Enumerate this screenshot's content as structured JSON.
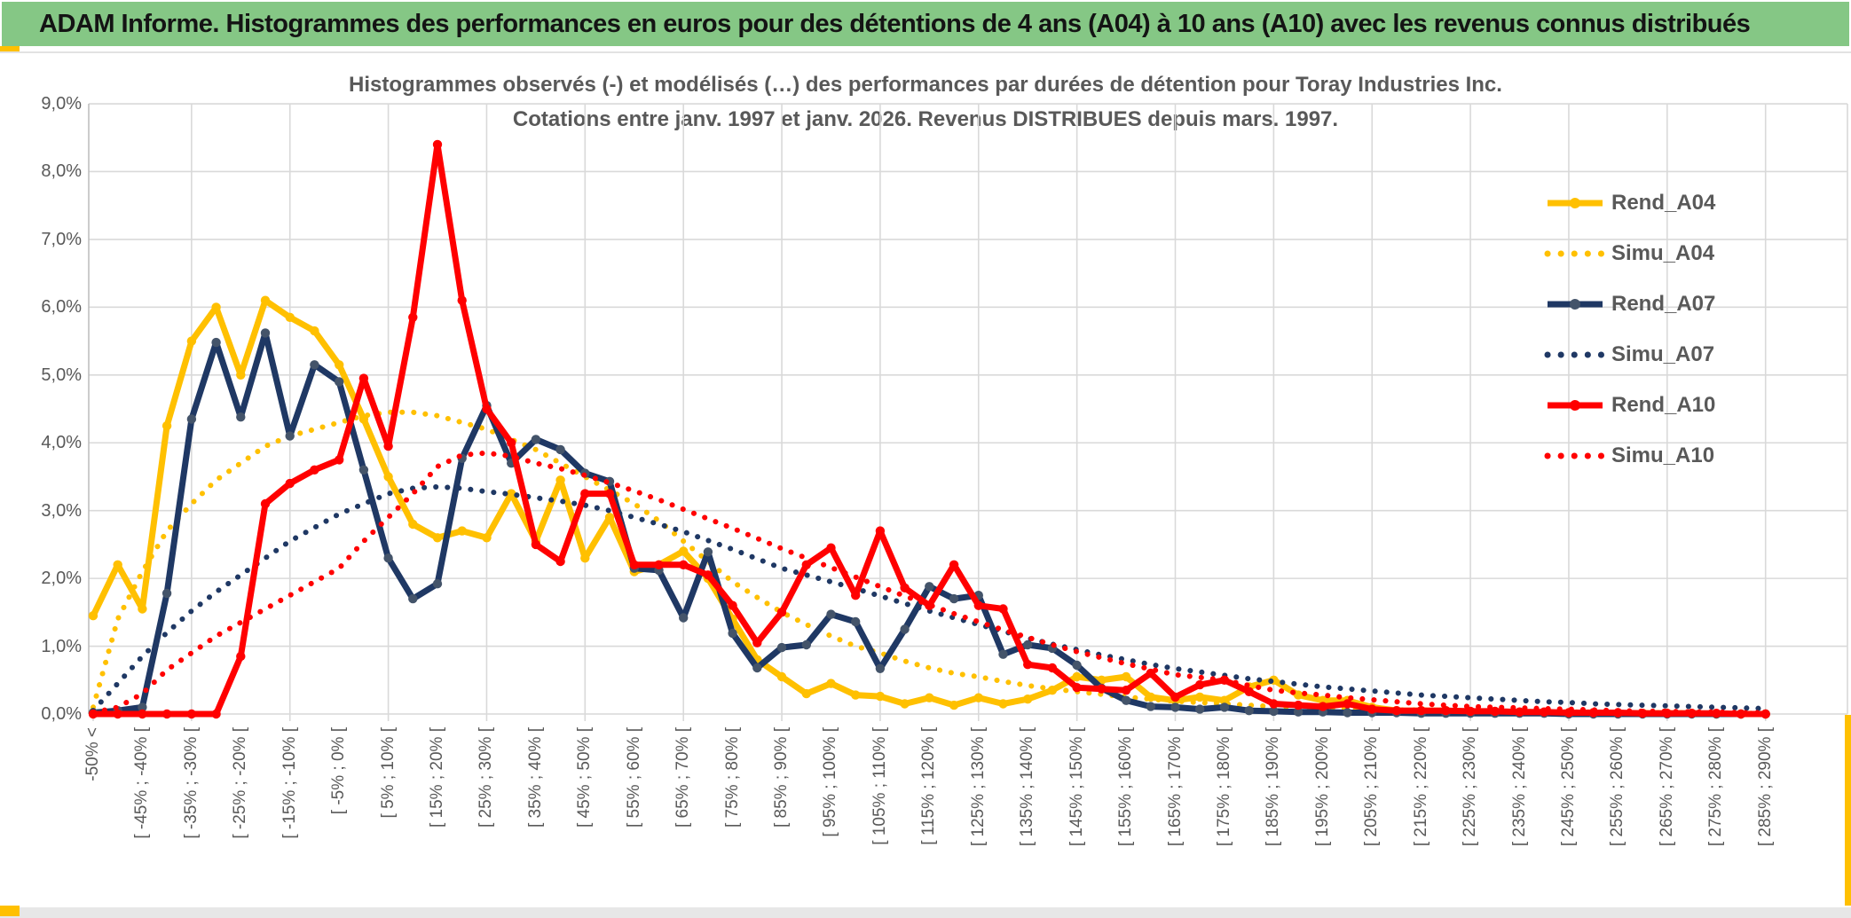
{
  "banner": {
    "title": "ADAM Informe. Histogrammes des performances en euros pour des détentions de 4 ans (A04) à 10 ans (A10) avec les revenus connus distribués"
  },
  "colors": {
    "banner_green": "#85C785",
    "accent_gold": "#FFC000",
    "gold": "#FFC000",
    "navy": "#1F3864",
    "navy_marker": "#44546A",
    "red": "#FF0000",
    "grid": "#D9D9D9",
    "axis_text": "#595959",
    "title_text": "#595959",
    "banner_text": "#141414"
  },
  "chart_data": {
    "type": "line",
    "title": "Histogrammes observés (-) et modélisés (…) des performances par durées de détention pour Toray Industries Inc.",
    "subtitle": "Cotations entre janv. 1997 et janv. 2026. Revenus DISTRIBUES depuis mars. 1997.",
    "grid": true,
    "legend_position": "right-inside",
    "ylim": [
      0,
      9
    ],
    "y_tick_labels": [
      "0,0%",
      "1,0%",
      "2,0%",
      "3,0%",
      "4,0%",
      "5,0%",
      "6,0%",
      "7,0%",
      "8,0%",
      "9,0%"
    ],
    "n_points": 69,
    "x_bin_width_pct": 5,
    "x_ticks_every_n_points": 2,
    "x_gridlines_every_n_points": 4,
    "x_tick_labels": [
      "-50% <",
      "[ -45% ; -40% [",
      "[ -35% ; -30% [",
      "[ -25% ; -20% [",
      "[ -15% ; -10% [",
      "[ -5% ; 0% [",
      "[ 5% ; 10% [",
      "[ 15% ; 20% [",
      "[ 25% ; 30% [",
      "[ 35% ; 40% [",
      "[ 45% ; 50% [",
      "[ 55% ; 60% [",
      "[ 65% ; 70% [",
      "[ 75% ; 80% [",
      "[ 85% ; 90% [",
      "[ 95% ; 100% [",
      "[ 105% ; 110% [",
      "[ 115% ; 120% [",
      "[ 125% ; 130% [",
      "[ 135% ; 140% [",
      "[ 145% ; 150% [",
      "[ 155% ; 160% [",
      "[ 165% ; 170% [",
      "[ 175% ; 180% [",
      "[ 185% ; 190% [",
      "[ 195% ; 200% [",
      "[ 205% ; 210% [",
      "[ 215% ; 220% [",
      "[ 225% ; 230% [",
      "[ 235% ; 240% [",
      "[ 245% ; 250% [",
      "[ 255% ; 260% [",
      "[ 265% ; 270% [",
      "[ 275% ; 280% [",
      "[ 285% ; 290% ["
    ],
    "series": [
      {
        "name": "Rend_A04",
        "style": "solid",
        "color": "#FFC000",
        "marker_color": "#FFC000",
        "values": [
          1.45,
          2.2,
          1.55,
          4.25,
          5.5,
          6.0,
          5.0,
          6.1,
          5.85,
          5.65,
          5.15,
          4.35,
          3.5,
          2.8,
          2.6,
          2.7,
          2.6,
          3.25,
          2.55,
          3.45,
          2.3,
          2.9,
          2.1,
          2.2,
          2.4,
          2.0,
          1.4,
          0.8,
          0.55,
          0.3,
          0.45,
          0.28,
          0.26,
          0.15,
          0.24,
          0.13,
          0.24,
          0.15,
          0.22,
          0.35,
          0.55,
          0.5,
          0.55,
          0.25,
          0.2,
          0.25,
          0.2,
          0.4,
          0.5,
          0.28,
          0.2,
          0.2,
          0.1,
          0.05,
          0.05,
          0.05,
          0.03,
          0.03,
          0.02,
          0.02,
          0.02,
          0.02,
          0.01,
          0.01,
          0.01,
          0.01,
          0.0,
          0.0,
          0.0
        ]
      },
      {
        "name": "Simu_A04",
        "style": "dotted",
        "color": "#FFC000",
        "values": [
          0.1,
          1.4,
          2.1,
          2.7,
          3.1,
          3.45,
          3.7,
          3.95,
          4.1,
          4.2,
          4.3,
          4.4,
          4.45,
          4.45,
          4.4,
          4.3,
          4.2,
          4.05,
          3.9,
          3.7,
          3.5,
          3.3,
          3.1,
          2.85,
          2.55,
          2.25,
          1.95,
          1.72,
          1.5,
          1.32,
          1.15,
          1.0,
          0.9,
          0.78,
          0.68,
          0.6,
          0.55,
          0.48,
          0.42,
          0.37,
          0.33,
          0.29,
          0.25,
          0.22,
          0.19,
          0.17,
          0.15,
          0.13,
          0.11,
          0.1,
          0.09,
          0.08,
          0.07,
          0.06,
          0.06,
          0.05,
          0.05,
          0.04,
          0.04,
          0.03,
          0.03,
          0.03,
          0.02,
          0.02,
          0.02,
          0.02,
          0.01,
          0.01,
          0.01
        ]
      },
      {
        "name": "Rend_A07",
        "style": "solid",
        "color": "#1F3864",
        "marker_color": "#44546A",
        "values": [
          0.02,
          0.05,
          0.1,
          1.78,
          4.35,
          5.48,
          4.38,
          5.62,
          4.1,
          5.15,
          4.9,
          3.6,
          2.3,
          1.7,
          1.92,
          3.77,
          4.55,
          3.7,
          4.05,
          3.9,
          3.55,
          3.43,
          2.15,
          2.12,
          1.42,
          2.39,
          1.19,
          0.68,
          0.98,
          1.02,
          1.47,
          1.36,
          0.67,
          1.25,
          1.88,
          1.7,
          1.75,
          0.88,
          1.02,
          0.97,
          0.72,
          0.38,
          0.2,
          0.11,
          0.1,
          0.07,
          0.1,
          0.05,
          0.04,
          0.03,
          0.03,
          0.02,
          0.02,
          0.02,
          0.01,
          0.01,
          0.01,
          0.01,
          0.01,
          0.01,
          0.0,
          0.0,
          0.0,
          0.0,
          0.0,
          0.0,
          0.0,
          0.0,
          0.0
        ]
      },
      {
        "name": "Simu_A07",
        "style": "dotted",
        "color": "#1F3864",
        "values": [
          0.05,
          0.45,
          0.85,
          1.2,
          1.52,
          1.8,
          2.05,
          2.3,
          2.55,
          2.75,
          2.95,
          3.1,
          3.25,
          3.33,
          3.35,
          3.33,
          3.28,
          3.24,
          3.19,
          3.14,
          3.08,
          3.0,
          2.9,
          2.8,
          2.69,
          2.56,
          2.43,
          2.29,
          2.15,
          2.05,
          1.95,
          1.85,
          1.74,
          1.63,
          1.52,
          1.42,
          1.32,
          1.22,
          1.12,
          1.03,
          0.95,
          0.87,
          0.8,
          0.73,
          0.67,
          0.62,
          0.57,
          0.52,
          0.48,
          0.44,
          0.4,
          0.37,
          0.34,
          0.31,
          0.28,
          0.26,
          0.24,
          0.22,
          0.2,
          0.18,
          0.17,
          0.15,
          0.14,
          0.13,
          0.12,
          0.11,
          0.1,
          0.09,
          0.08
        ]
      },
      {
        "name": "Rend_A10",
        "style": "solid",
        "color": "#FF0000",
        "marker_color": "#FF0000",
        "values": [
          0.0,
          0.0,
          0.0,
          0.0,
          0.0,
          0.0,
          0.85,
          3.1,
          3.4,
          3.6,
          3.75,
          4.95,
          3.95,
          5.85,
          8.4,
          6.1,
          4.5,
          4.0,
          2.5,
          2.25,
          3.25,
          3.25,
          2.2,
          2.2,
          2.2,
          2.05,
          1.6,
          1.05,
          1.5,
          2.2,
          2.45,
          1.75,
          2.7,
          1.86,
          1.6,
          2.2,
          1.6,
          1.55,
          0.73,
          0.68,
          0.39,
          0.37,
          0.35,
          0.6,
          0.25,
          0.43,
          0.5,
          0.33,
          0.15,
          0.13,
          0.11,
          0.15,
          0.07,
          0.05,
          0.05,
          0.05,
          0.04,
          0.04,
          0.03,
          0.03,
          0.02,
          0.02,
          0.02,
          0.01,
          0.01,
          0.01,
          0.01,
          0.0,
          0.0
        ]
      },
      {
        "name": "Simu_A10",
        "style": "dotted",
        "color": "#FF0000",
        "values": [
          0.02,
          0.1,
          0.3,
          0.65,
          0.9,
          1.15,
          1.35,
          1.55,
          1.75,
          1.95,
          2.15,
          2.55,
          2.9,
          3.25,
          3.65,
          3.82,
          3.85,
          3.8,
          3.7,
          3.62,
          3.52,
          3.41,
          3.29,
          3.16,
          3.02,
          2.88,
          2.74,
          2.59,
          2.44,
          2.3,
          2.16,
          2.02,
          1.88,
          1.74,
          1.61,
          1.48,
          1.36,
          1.24,
          1.13,
          1.02,
          0.92,
          0.83,
          0.74,
          0.66,
          0.58,
          0.54,
          0.5,
          0.42,
          0.35,
          0.31,
          0.28,
          0.24,
          0.21,
          0.18,
          0.15,
          0.13,
          0.11,
          0.1,
          0.09,
          0.08,
          0.07,
          0.06,
          0.05,
          0.04,
          0.04,
          0.03,
          0.03,
          0.02,
          0.02
        ]
      }
    ]
  }
}
